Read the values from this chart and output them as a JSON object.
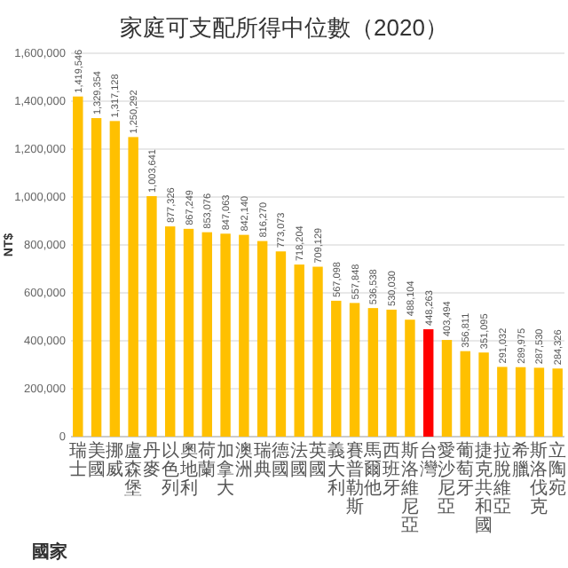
{
  "chart_data": {
    "type": "bar",
    "title": "家庭可支配所得中位數（2020）",
    "xlabel": "國家",
    "ylabel": "NT$",
    "categories": [
      "瑞士",
      "美國",
      "挪威",
      "盧森堡",
      "丹麥",
      "以色列",
      "奧地利",
      "荷蘭",
      "加拿大",
      "澳洲",
      "瑞典",
      "德國",
      "法國",
      "英國",
      "義大利",
      "賽普勒斯",
      "馬爾他",
      "西班牙",
      "斯洛維尼亞",
      "台灣",
      "愛沙尼亞",
      "葡萄牙",
      "捷克共和國",
      "拉脫維亞",
      "希臘",
      "斯洛伐克",
      "立陶宛"
    ],
    "values": [
      1419546,
      1329354,
      1317128,
      1250292,
      1003641,
      877326,
      867249,
      853076,
      847063,
      842140,
      816270,
      773073,
      718204,
      709129,
      567098,
      557848,
      536538,
      530030,
      488104,
      448263,
      403494,
      356811,
      351095,
      291032,
      289975,
      287530,
      284326
    ],
    "colors": [
      "#ffc000",
      "#ffc000",
      "#ffc000",
      "#ffc000",
      "#ffc000",
      "#ffc000",
      "#ffc000",
      "#ffc000",
      "#ffc000",
      "#ffc000",
      "#ffc000",
      "#ffc000",
      "#ffc000",
      "#ffc000",
      "#ffc000",
      "#ffc000",
      "#ffc000",
      "#ffc000",
      "#ffc000",
      "#ff0000",
      "#ffc000",
      "#ffc000",
      "#ffc000",
      "#ffc000",
      "#ffc000",
      "#ffc000",
      "#ffc000"
    ],
    "ylim": [
      0,
      1600000
    ],
    "yticks": [
      {
        "value": 0,
        "label": "0"
      },
      {
        "value": 200000,
        "label": "200,000"
      },
      {
        "value": 400000,
        "label": "400,000"
      },
      {
        "value": 600000,
        "label": "600,000"
      },
      {
        "value": 800000,
        "label": "800,000"
      },
      {
        "value": 1000000,
        "label": "1,000,000"
      },
      {
        "value": 1200000,
        "label": "1,200,000"
      },
      {
        "value": 1400000,
        "label": "1,400,000"
      },
      {
        "value": 1600000,
        "label": "1,600,000"
      }
    ],
    "value_labels": [
      "1,419,546",
      "1,329,354",
      "1,317,128",
      "1,250,292",
      "1,003,641",
      "877,326",
      "867,249",
      "853,076",
      "847,063",
      "842,140",
      "816,270",
      "773,073",
      "718,204",
      "709,129",
      "567,098",
      "557,848",
      "536,538",
      "530,030",
      "488,104",
      "448,263",
      "403,494",
      "356,811",
      "351,095",
      "291,032",
      "289,975",
      "287,530",
      "284,326"
    ],
    "grid": "y"
  }
}
